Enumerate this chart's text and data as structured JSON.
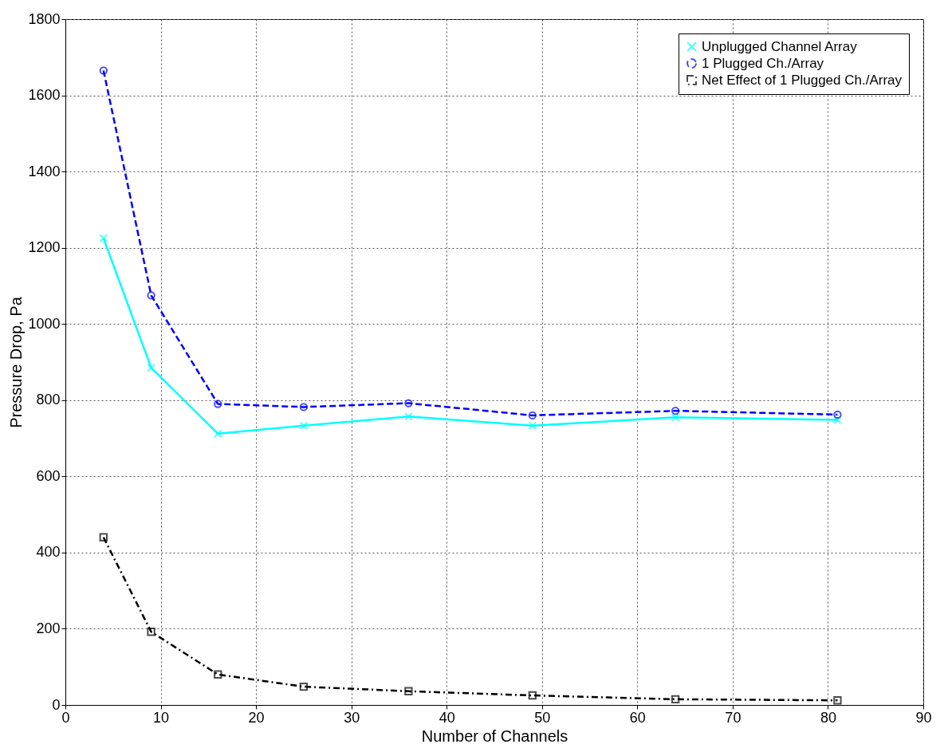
{
  "chart_data": {
    "type": "line",
    "xlabel": "Number of Channels",
    "ylabel": "Pressure Drop, Pa",
    "x": [
      4,
      9,
      16,
      25,
      36,
      49,
      64,
      81
    ],
    "series": [
      {
        "name": "Unplugged Channel Array",
        "color": "#00ffff",
        "marker": "cross",
        "line_style": "solid",
        "values": [
          1225,
          885,
          712,
          733,
          757,
          733,
          755,
          748
        ]
      },
      {
        "name": "1 Plugged Ch./Array",
        "color": "#0000ff",
        "marker": "circle",
        "line_style": "dashed",
        "values": [
          1665,
          1075,
          790,
          782,
          792,
          760,
          772,
          762
        ]
      },
      {
        "name": "Net Effect of 1 Plugged Ch./Array",
        "color": "#000000",
        "marker": "square",
        "line_style": "dashdot",
        "values": [
          440,
          192,
          80,
          48,
          36,
          25,
          15,
          12
        ]
      }
    ],
    "xlim": [
      0,
      90
    ],
    "xticks": [
      0,
      10,
      20,
      30,
      40,
      50,
      60,
      70,
      80,
      90
    ],
    "ylim": [
      0,
      1800
    ],
    "yticks": [
      0,
      200,
      400,
      600,
      800,
      1000,
      1200,
      1400,
      1600,
      1800
    ],
    "grid": true,
    "legend": "top right"
  }
}
